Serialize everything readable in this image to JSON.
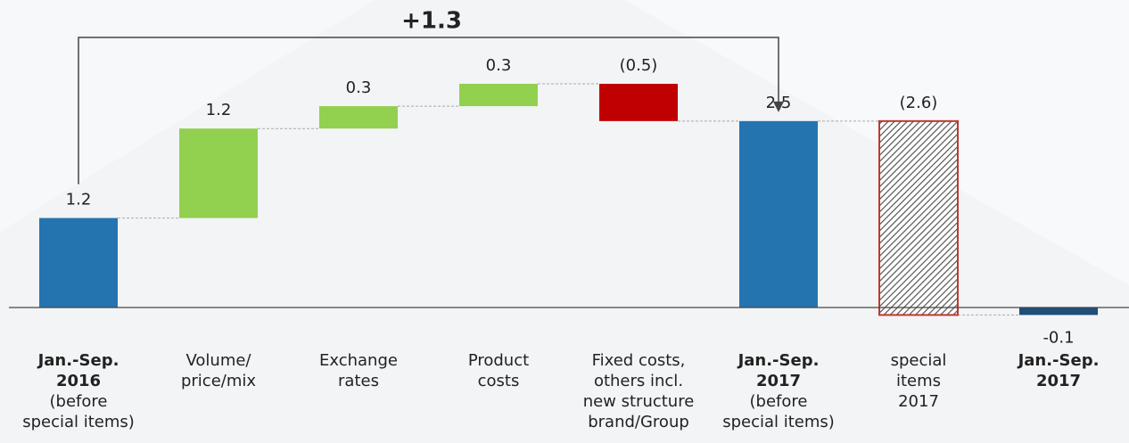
{
  "chart_data": {
    "type": "waterfall",
    "annotation": "+1.3",
    "categories": [
      {
        "bold": [
          "Jan.-Sep.",
          "2016"
        ],
        "lines": [
          "(before",
          "special items)"
        ]
      },
      {
        "lines": [
          "Volume/",
          "price/mix"
        ]
      },
      {
        "lines": [
          "Exchange",
          "rates"
        ]
      },
      {
        "lines": [
          "Product",
          "costs"
        ]
      },
      {
        "lines": [
          "Fixed costs,",
          "others incl.",
          "new structure",
          "brand/Group"
        ]
      },
      {
        "bold": [
          "Jan.-Sep.",
          "2017"
        ],
        "lines": [
          "(before",
          "special items)"
        ]
      },
      {
        "lines": [
          "special",
          "items",
          "2017"
        ]
      },
      {
        "bold": [
          "Jan.-Sep.",
          "2017"
        ]
      }
    ],
    "values": [
      1.2,
      1.2,
      0.3,
      0.3,
      -0.5,
      2.5,
      -2.6,
      -0.1
    ],
    "value_labels": [
      "1.2",
      "1.2",
      "0.3",
      "0.3",
      "(0.5)",
      "2.5",
      "(2.6)",
      "-0.1"
    ],
    "kinds": [
      "total",
      "increase",
      "increase",
      "increase",
      "decrease",
      "total",
      "special",
      "total"
    ],
    "colors": [
      "#2474b0",
      "#92d050",
      "#92d050",
      "#92d050",
      "#c00000",
      "#2474b0",
      "#c0392b",
      "#1f4e79"
    ]
  }
}
